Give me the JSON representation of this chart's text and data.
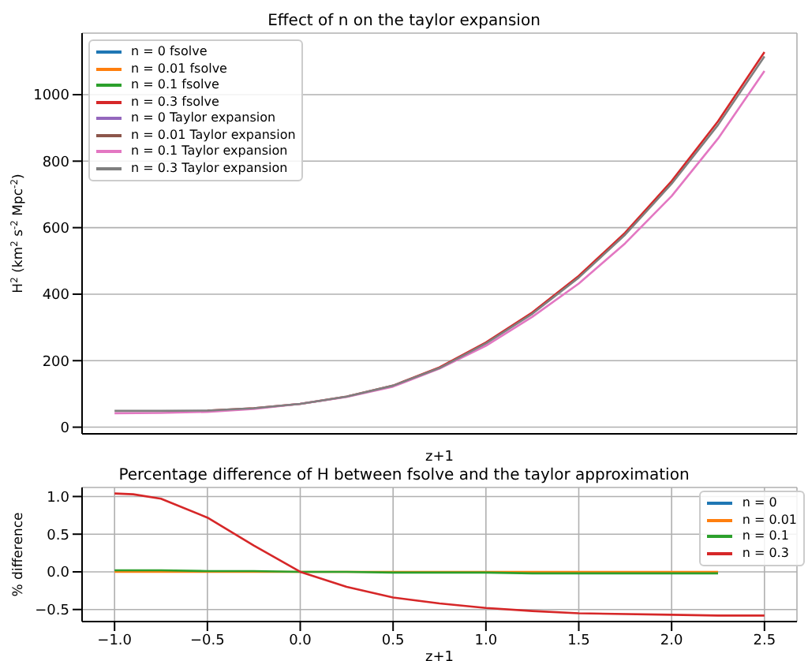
{
  "chart_data": [
    {
      "type": "line",
      "title": "Effect of n on the taylor expansion",
      "xlabel": "z+1",
      "ylabel": "H$^{2}$ (km$^{2}$ s$^{-2}$ Mpc$^{-2}$)",
      "x": [
        -1,
        -0.75,
        -0.5,
        -0.25,
        0,
        0.25,
        0.5,
        0.75,
        1,
        1.25,
        1.5,
        1.75,
        2,
        2.25,
        2.5
      ],
      "series": [
        {
          "name": "n = 0 fsolve",
          "color": "#1f77b4",
          "values": [
            null,
            null,
            null,
            null,
            null,
            null,
            null,
            null,
            null,
            null,
            null,
            null,
            null,
            null,
            null
          ]
        },
        {
          "name": "n = 0.01 fsolve",
          "color": "#ff7f0e",
          "values": [
            null,
            null,
            null,
            null,
            null,
            null,
            null,
            null,
            null,
            null,
            null,
            null,
            null,
            null,
            null
          ]
        },
        {
          "name": "n = 0.1 fsolve",
          "color": "#2ca02c",
          "values": [
            null,
            null,
            null,
            null,
            null,
            null,
            null,
            null,
            null,
            null,
            null,
            null,
            null,
            null,
            null
          ]
        },
        {
          "name": "n = 0.3 fsolve",
          "color": "#d62728",
          "values": [
            null,
            null,
            50,
            57,
            70,
            92,
            125,
            180,
            255,
            345,
            455,
            585,
            740,
            920,
            1128
          ]
        },
        {
          "name": "n = 0 Taylor expansion",
          "color": "#9467bd",
          "values": [
            null,
            null,
            null,
            null,
            null,
            null,
            null,
            null,
            null,
            null,
            null,
            null,
            null,
            null,
            null
          ]
        },
        {
          "name": "n = 0.01 Taylor expansion",
          "color": "#8c564b",
          "values": [
            null,
            null,
            null,
            null,
            null,
            null,
            null,
            null,
            null,
            null,
            null,
            null,
            null,
            null,
            null
          ]
        },
        {
          "name": "n = 0.1 Taylor expansion",
          "color": "#e377c2",
          "values": [
            42,
            43,
            46,
            55,
            70,
            91,
            122,
            176,
            245,
            332,
            432,
            553,
            695,
            868,
            1071
          ]
        },
        {
          "name": "n = 0.3 Taylor expansion",
          "color": "#7f7f7f",
          "values": [
            49,
            49,
            50,
            57,
            70,
            92,
            125,
            178,
            252,
            341,
            450,
            579,
            732,
            909,
            1115
          ]
        }
      ],
      "xlim": [
        -1.175,
        2.675
      ],
      "xticks": [
        -1,
        -0.5,
        0,
        0.5,
        1,
        1.5,
        2,
        2.5
      ],
      "ylim": [
        -20,
        1185
      ],
      "yticks": [
        0,
        200,
        400,
        600,
        800,
        1000
      ],
      "tick_labels": "y",
      "grid": true,
      "legend": "top left"
    },
    {
      "type": "line",
      "title": "Percentage difference of H between fsolve and the taylor approximation",
      "xlabel": "z+1",
      "ylabel": "% difference",
      "x": [
        -1,
        -0.9,
        -0.75,
        -0.5,
        -0.25,
        0,
        0.25,
        0.5,
        0.75,
        1,
        1.25,
        1.5,
        2,
        2.25,
        2.5
      ],
      "series": [
        {
          "name": "n = 0",
          "color": "#1f77b4",
          "values": [
            null,
            null,
            null,
            null,
            null,
            null,
            null,
            null,
            null,
            null,
            null,
            null,
            null,
            null,
            null
          ]
        },
        {
          "name": "n = 0.01",
          "color": "#ff7f0e",
          "values": [
            0,
            0,
            0,
            0,
            0,
            0,
            0,
            0,
            0,
            0,
            0,
            0,
            0,
            0,
            null
          ]
        },
        {
          "name": "n = 0.1",
          "color": "#2ca02c",
          "values": [
            0.02,
            0.02,
            0.02,
            0.01,
            0.01,
            0,
            0,
            -0.01,
            -0.01,
            -0.01,
            -0.02,
            -0.02,
            -0.02,
            -0.02,
            null
          ]
        },
        {
          "name": "n = 0.3",
          "color": "#d62728",
          "values": [
            1.04,
            1.03,
            0.97,
            0.72,
            0.35,
            0,
            -0.2,
            -0.34,
            -0.42,
            -0.48,
            -0.52,
            -0.55,
            -0.57,
            -0.58,
            -0.58
          ]
        }
      ],
      "xlim": [
        -1.175,
        2.675
      ],
      "xticks": [
        {
          "value": -1,
          "label": "−1.0"
        },
        -0.5,
        {
          "value": 0,
          "label": "0.0"
        },
        0.5,
        {
          "value": 1,
          "label": "1.0"
        },
        1.5,
        {
          "value": 2,
          "label": "2.0"
        },
        2.5
      ],
      "ylim": [
        -0.66,
        1.12
      ],
      "yticks": [
        -0.5,
        {
          "value": 0,
          "label": "0.0"
        },
        0.5,
        {
          "value": 1,
          "label": "1.0"
        }
      ],
      "grid": true,
      "legend": "top right"
    }
  ]
}
